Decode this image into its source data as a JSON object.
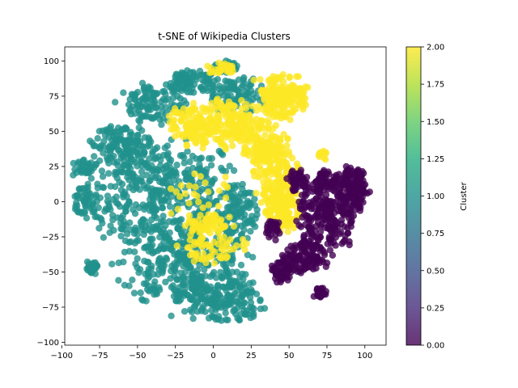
{
  "chart_data": {
    "type": "scatter",
    "title": "t-SNE of Wikipedia Clusters",
    "xlabel": "",
    "ylabel": "",
    "xlim": [
      -98,
      114
    ],
    "ylim": [
      -102,
      110
    ],
    "xticks": [
      -100,
      -75,
      -50,
      -25,
      0,
      25,
      50,
      75,
      100
    ],
    "yticks": [
      -100,
      -75,
      -50,
      -25,
      0,
      25,
      50,
      75,
      100
    ],
    "grid": false,
    "colorbar": {
      "label": "Cluster",
      "range": [
        0.0,
        2.0
      ],
      "ticks": [
        "0.00",
        "0.25",
        "0.50",
        "0.75",
        "1.00",
        "1.25",
        "1.50",
        "1.75",
        "2.00"
      ],
      "colormap": "viridis"
    },
    "colors": {
      "cluster_0": "#440154",
      "cluster_1": "#21918c",
      "cluster_2": "#fde725"
    },
    "series": [
      {
        "cluster": 1,
        "color": "#21918c",
        "regions": [
          {
            "cx": -35,
            "cy": 5,
            "rx": 55,
            "ry": 40,
            "n": 450
          },
          {
            "cx": -20,
            "cy": -45,
            "rx": 45,
            "ry": 30,
            "n": 320
          },
          {
            "cx": 5,
            "cy": -70,
            "rx": 30,
            "ry": 18,
            "n": 180
          },
          {
            "cx": -60,
            "cy": 40,
            "rx": 22,
            "ry": 15,
            "n": 120
          },
          {
            "cx": -40,
            "cy": 70,
            "rx": 22,
            "ry": 15,
            "n": 110
          },
          {
            "cx": -15,
            "cy": 85,
            "rx": 18,
            "ry": 10,
            "n": 80
          },
          {
            "cx": 15,
            "cy": 75,
            "rx": 20,
            "ry": 15,
            "n": 90
          },
          {
            "cx": -85,
            "cy": 0,
            "rx": 8,
            "ry": 12,
            "n": 40
          },
          {
            "cx": -80,
            "cy": -47,
            "rx": 5,
            "ry": 5,
            "n": 25
          },
          {
            "cx": -85,
            "cy": 25,
            "rx": 8,
            "ry": 6,
            "n": 30
          },
          {
            "cx": 15,
            "cy": -10,
            "rx": 15,
            "ry": 25,
            "n": 100
          },
          {
            "cx": 8,
            "cy": 95,
            "rx": 8,
            "ry": 5,
            "n": 30
          }
        ]
      },
      {
        "cluster": 2,
        "color": "#fde725",
        "regions": [
          {
            "cx": 10,
            "cy": 55,
            "rx": 30,
            "ry": 20,
            "n": 220
          },
          {
            "cx": 45,
            "cy": 75,
            "rx": 18,
            "ry": 18,
            "n": 180
          },
          {
            "cx": 42,
            "cy": 20,
            "rx": 15,
            "ry": 30,
            "n": 200
          },
          {
            "cx": 45,
            "cy": -5,
            "rx": 12,
            "ry": 18,
            "n": 120
          },
          {
            "cx": 30,
            "cy": 35,
            "rx": 10,
            "ry": 12,
            "n": 60
          },
          {
            "cx": -15,
            "cy": 55,
            "rx": 15,
            "ry": 15,
            "n": 80
          },
          {
            "cx": 0,
            "cy": -30,
            "rx": 25,
            "ry": 15,
            "n": 70
          },
          {
            "cx": -5,
            "cy": -15,
            "rx": 15,
            "ry": 8,
            "n": 50
          },
          {
            "cx": 5,
            "cy": 95,
            "rx": 10,
            "ry": 5,
            "n": 30
          },
          {
            "cx": 72,
            "cy": 33,
            "rx": 4,
            "ry": 4,
            "n": 12
          },
          {
            "cx": -10,
            "cy": 5,
            "rx": 25,
            "ry": 25,
            "n": 30
          }
        ]
      },
      {
        "cluster": 0,
        "color": "#440154",
        "regions": [
          {
            "cx": 75,
            "cy": -10,
            "rx": 20,
            "ry": 30,
            "n": 250
          },
          {
            "cx": 92,
            "cy": 10,
            "rx": 12,
            "ry": 18,
            "n": 140
          },
          {
            "cx": 60,
            "cy": -40,
            "rx": 15,
            "ry": 12,
            "n": 120
          },
          {
            "cx": 70,
            "cy": -65,
            "rx": 5,
            "ry": 4,
            "n": 30
          },
          {
            "cx": 45,
            "cy": -50,
            "rx": 8,
            "ry": 10,
            "n": 60
          },
          {
            "cx": 55,
            "cy": 15,
            "rx": 8,
            "ry": 8,
            "n": 50
          },
          {
            "cx": 75,
            "cy": 15,
            "rx": 8,
            "ry": 8,
            "n": 40
          },
          {
            "cx": 40,
            "cy": -20,
            "rx": 6,
            "ry": 8,
            "n": 30
          }
        ]
      }
    ]
  }
}
